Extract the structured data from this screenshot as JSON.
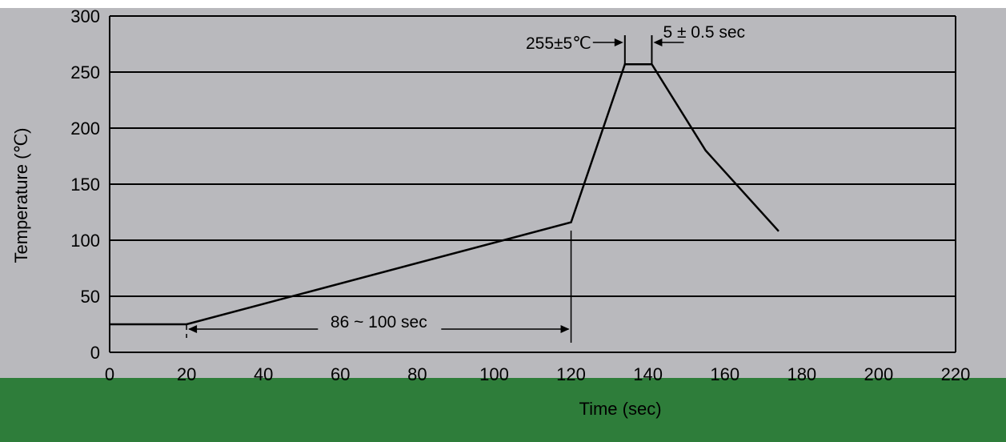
{
  "chart_data": {
    "type": "line",
    "xlabel": "Time (sec)",
    "ylabel": "Temperature (℃)",
    "xlim": [
      0,
      220
    ],
    "ylim": [
      0,
      300
    ],
    "x_ticks": [
      0,
      20,
      40,
      60,
      80,
      100,
      120,
      140,
      160,
      180,
      200,
      220
    ],
    "y_ticks": [
      0,
      50,
      100,
      150,
      200,
      250,
      300
    ],
    "grid": "horizontal",
    "colors": {
      "plot_background": "#b9b9bd",
      "bottom_band": "#2e7d3a",
      "line": "#000000"
    },
    "series": [
      {
        "x": [
          0,
          20,
          120,
          134,
          141,
          155,
          174
        ],
        "y": [
          25,
          25,
          116,
          257,
          257,
          180,
          108
        ]
      }
    ],
    "annotations": {
      "preheat": {
        "text": "86 ~ 100 sec",
        "from": 20,
        "to": 120
      },
      "peak_temp": {
        "text": "255±5℃"
      },
      "peak_time": {
        "text": "5 ± 0.5 sec"
      }
    }
  }
}
